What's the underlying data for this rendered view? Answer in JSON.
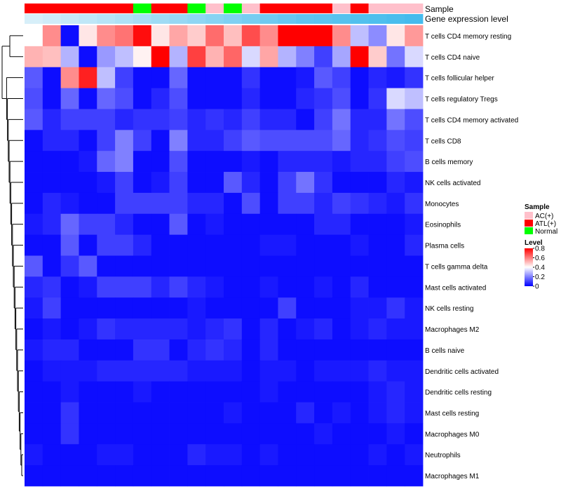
{
  "chart_data": {
    "type": "heatmap",
    "title": "",
    "annotation_rows": {
      "sample_label": "Sample",
      "expression_label": "Gene expression level"
    },
    "samples": [
      "ATL(+)",
      "ATL(+)",
      "ATL(+)",
      "ATL(+)",
      "ATL(+)",
      "ATL(+)",
      "Normal",
      "ATL(+)",
      "ATL(+)",
      "Normal",
      "AC(+)",
      "Normal",
      "AC(+)",
      "ATL(+)",
      "ATL(+)",
      "ATL(+)",
      "ATL(+)",
      "AC(+)",
      "ATL(+)",
      "AC(+)",
      "AC(+)",
      "AC(+)"
    ],
    "expression_levels": [
      0.05,
      0.1,
      0.15,
      0.2,
      0.25,
      0.3,
      0.35,
      0.4,
      0.45,
      0.5,
      0.55,
      0.6,
      0.65,
      0.7,
      0.75,
      0.8,
      0.82,
      0.85,
      0.88,
      0.9,
      0.93,
      0.96
    ],
    "rows": [
      "T cells CD4 memory resting",
      "T cells CD4 naive",
      "T cells follicular helper",
      "T cells regulatory  Tregs",
      "T cells CD4 memory activated",
      "T cells CD8",
      "B cells memory",
      "NK cells activated",
      "Monocytes",
      "Eosinophils",
      "Plasma cells",
      "T cells gamma delta",
      "Mast cells activated",
      "NK cells resting",
      "Macrophages M2",
      "B cells naive",
      "Dendritic cells activated",
      "Dendritic cells resting",
      "Mast cells resting",
      "Macrophages M0",
      "Neutrophils",
      "Macrophages M1"
    ],
    "values": [
      [
        0.4,
        0.58,
        0.02,
        0.44,
        0.58,
        0.62,
        0.78,
        0.44,
        0.54,
        0.48,
        0.63,
        0.5,
        0.68,
        0.58,
        0.8,
        0.8,
        0.8,
        0.58,
        0.3,
        0.22,
        0.44,
        0.56
      ],
      [
        0.52,
        0.5,
        0.28,
        0.02,
        0.24,
        0.3,
        0.42,
        0.8,
        0.28,
        0.7,
        0.52,
        0.64,
        0.34,
        0.54,
        0.28,
        0.2,
        0.1,
        0.26,
        0.8,
        0.48,
        0.18,
        0.34
      ],
      [
        0.14,
        0.02,
        0.58,
        0.75,
        0.3,
        0.1,
        0.02,
        0.02,
        0.16,
        0.02,
        0.02,
        0.02,
        0.08,
        0.02,
        0.02,
        0.04,
        0.14,
        0.1,
        0.02,
        0.06,
        0.04,
        0.08
      ],
      [
        0.12,
        0.02,
        0.16,
        0.02,
        0.16,
        0.12,
        0.02,
        0.06,
        0.12,
        0.02,
        0.02,
        0.02,
        0.06,
        0.02,
        0.02,
        0.06,
        0.08,
        0.12,
        0.02,
        0.08,
        0.34,
        0.3
      ],
      [
        0.14,
        0.06,
        0.1,
        0.1,
        0.1,
        0.06,
        0.08,
        0.08,
        0.1,
        0.06,
        0.08,
        0.06,
        0.1,
        0.06,
        0.06,
        0.02,
        0.1,
        0.18,
        0.06,
        0.06,
        0.18,
        0.12
      ],
      [
        0.02,
        0.06,
        0.06,
        0.02,
        0.1,
        0.2,
        0.1,
        0.02,
        0.2,
        0.06,
        0.06,
        0.1,
        0.14,
        0.12,
        0.12,
        0.12,
        0.12,
        0.16,
        0.06,
        0.08,
        0.12,
        0.1
      ],
      [
        0.02,
        0.02,
        0.02,
        0.04,
        0.16,
        0.2,
        0.02,
        0.02,
        0.12,
        0.02,
        0.02,
        0.02,
        0.04,
        0.02,
        0.06,
        0.06,
        0.06,
        0.04,
        0.06,
        0.06,
        0.1,
        0.12
      ],
      [
        0.02,
        0.02,
        0.02,
        0.02,
        0.04,
        0.1,
        0.02,
        0.04,
        0.1,
        0.02,
        0.02,
        0.14,
        0.06,
        0.02,
        0.1,
        0.18,
        0.08,
        0.02,
        0.02,
        0.02,
        0.06,
        0.04
      ],
      [
        0.02,
        0.06,
        0.04,
        0.02,
        0.02,
        0.1,
        0.1,
        0.1,
        0.1,
        0.06,
        0.06,
        0.02,
        0.12,
        0.02,
        0.1,
        0.1,
        0.06,
        0.1,
        0.08,
        0.06,
        0.04,
        0.08
      ],
      [
        0.04,
        0.06,
        0.16,
        0.1,
        0.1,
        0.06,
        0.02,
        0.02,
        0.14,
        0.02,
        0.04,
        0.02,
        0.02,
        0.02,
        0.02,
        0.02,
        0.06,
        0.06,
        0.02,
        0.02,
        0.02,
        0.04
      ],
      [
        0.02,
        0.02,
        0.14,
        0.02,
        0.1,
        0.1,
        0.06,
        0.02,
        0.02,
        0.02,
        0.02,
        0.02,
        0.02,
        0.04,
        0.04,
        0.02,
        0.02,
        0.02,
        0.04,
        0.02,
        0.02,
        0.06
      ],
      [
        0.14,
        0.02,
        0.08,
        0.14,
        0.02,
        0.02,
        0.02,
        0.02,
        0.02,
        0.02,
        0.02,
        0.02,
        0.02,
        0.02,
        0.02,
        0.02,
        0.02,
        0.02,
        0.02,
        0.02,
        0.02,
        0.02
      ],
      [
        0.06,
        0.08,
        0.02,
        0.04,
        0.1,
        0.1,
        0.1,
        0.06,
        0.1,
        0.06,
        0.04,
        0.02,
        0.02,
        0.04,
        0.02,
        0.02,
        0.04,
        0.02,
        0.06,
        0.02,
        0.02,
        0.02
      ],
      [
        0.04,
        0.1,
        0.02,
        0.02,
        0.02,
        0.02,
        0.02,
        0.02,
        0.02,
        0.04,
        0.02,
        0.02,
        0.02,
        0.02,
        0.1,
        0.02,
        0.02,
        0.02,
        0.04,
        0.04,
        0.08,
        0.04
      ],
      [
        0.02,
        0.04,
        0.02,
        0.04,
        0.08,
        0.06,
        0.06,
        0.06,
        0.06,
        0.04,
        0.06,
        0.08,
        0.02,
        0.06,
        0.02,
        0.04,
        0.06,
        0.02,
        0.04,
        0.06,
        0.04,
        0.04
      ],
      [
        0.04,
        0.06,
        0.06,
        0.02,
        0.02,
        0.02,
        0.08,
        0.08,
        0.02,
        0.06,
        0.08,
        0.06,
        0.02,
        0.06,
        0.02,
        0.02,
        0.02,
        0.02,
        0.02,
        0.02,
        0.02,
        0.02
      ],
      [
        0.02,
        0.04,
        0.04,
        0.04,
        0.06,
        0.06,
        0.06,
        0.06,
        0.06,
        0.04,
        0.04,
        0.04,
        0.02,
        0.04,
        0.04,
        0.02,
        0.04,
        0.04,
        0.04,
        0.06,
        0.04,
        0.04
      ],
      [
        0.02,
        0.02,
        0.04,
        0.02,
        0.02,
        0.02,
        0.04,
        0.02,
        0.02,
        0.02,
        0.02,
        0.02,
        0.02,
        0.04,
        0.02,
        0.02,
        0.02,
        0.02,
        0.02,
        0.04,
        0.06,
        0.04
      ],
      [
        0.02,
        0.02,
        0.08,
        0.02,
        0.02,
        0.02,
        0.02,
        0.02,
        0.02,
        0.02,
        0.02,
        0.04,
        0.02,
        0.02,
        0.02,
        0.06,
        0.02,
        0.04,
        0.02,
        0.04,
        0.06,
        0.04
      ],
      [
        0.02,
        0.02,
        0.08,
        0.02,
        0.02,
        0.02,
        0.02,
        0.02,
        0.02,
        0.02,
        0.02,
        0.02,
        0.02,
        0.02,
        0.02,
        0.02,
        0.04,
        0.02,
        0.02,
        0.02,
        0.04,
        0.02
      ],
      [
        0.04,
        0.02,
        0.02,
        0.02,
        0.04,
        0.04,
        0.02,
        0.02,
        0.02,
        0.06,
        0.04,
        0.04,
        0.02,
        0.04,
        0.02,
        0.02,
        0.02,
        0.02,
        0.02,
        0.04,
        0.02,
        0.04
      ],
      [
        0.02,
        0.02,
        0.02,
        0.02,
        0.02,
        0.02,
        0.02,
        0.02,
        0.02,
        0.02,
        0.02,
        0.02,
        0.02,
        0.02,
        0.02,
        0.02,
        0.02,
        0.02,
        0.02,
        0.02,
        0.02,
        0.02
      ]
    ],
    "legend_sample": {
      "title": "Sample",
      "items": [
        {
          "label": "AC(+)",
          "color": "#ffc0cb"
        },
        {
          "label": "ATL(+)",
          "color": "#ff0000"
        },
        {
          "label": "Normal",
          "color": "#00ff00"
        }
      ]
    },
    "legend_level": {
      "title": "Level",
      "range": [
        0,
        0.8
      ],
      "ticks": [
        "0",
        "0.2",
        "0.4",
        "0.6",
        "0.8"
      ],
      "tick_values": [
        0,
        0.2,
        0.4,
        0.6,
        0.8
      ]
    },
    "colorscale": [
      "#0000ff",
      "#ffffff",
      "#ff0000"
    ],
    "expression_colorscale": [
      "#dff2fa",
      "#3fb9ec"
    ]
  }
}
